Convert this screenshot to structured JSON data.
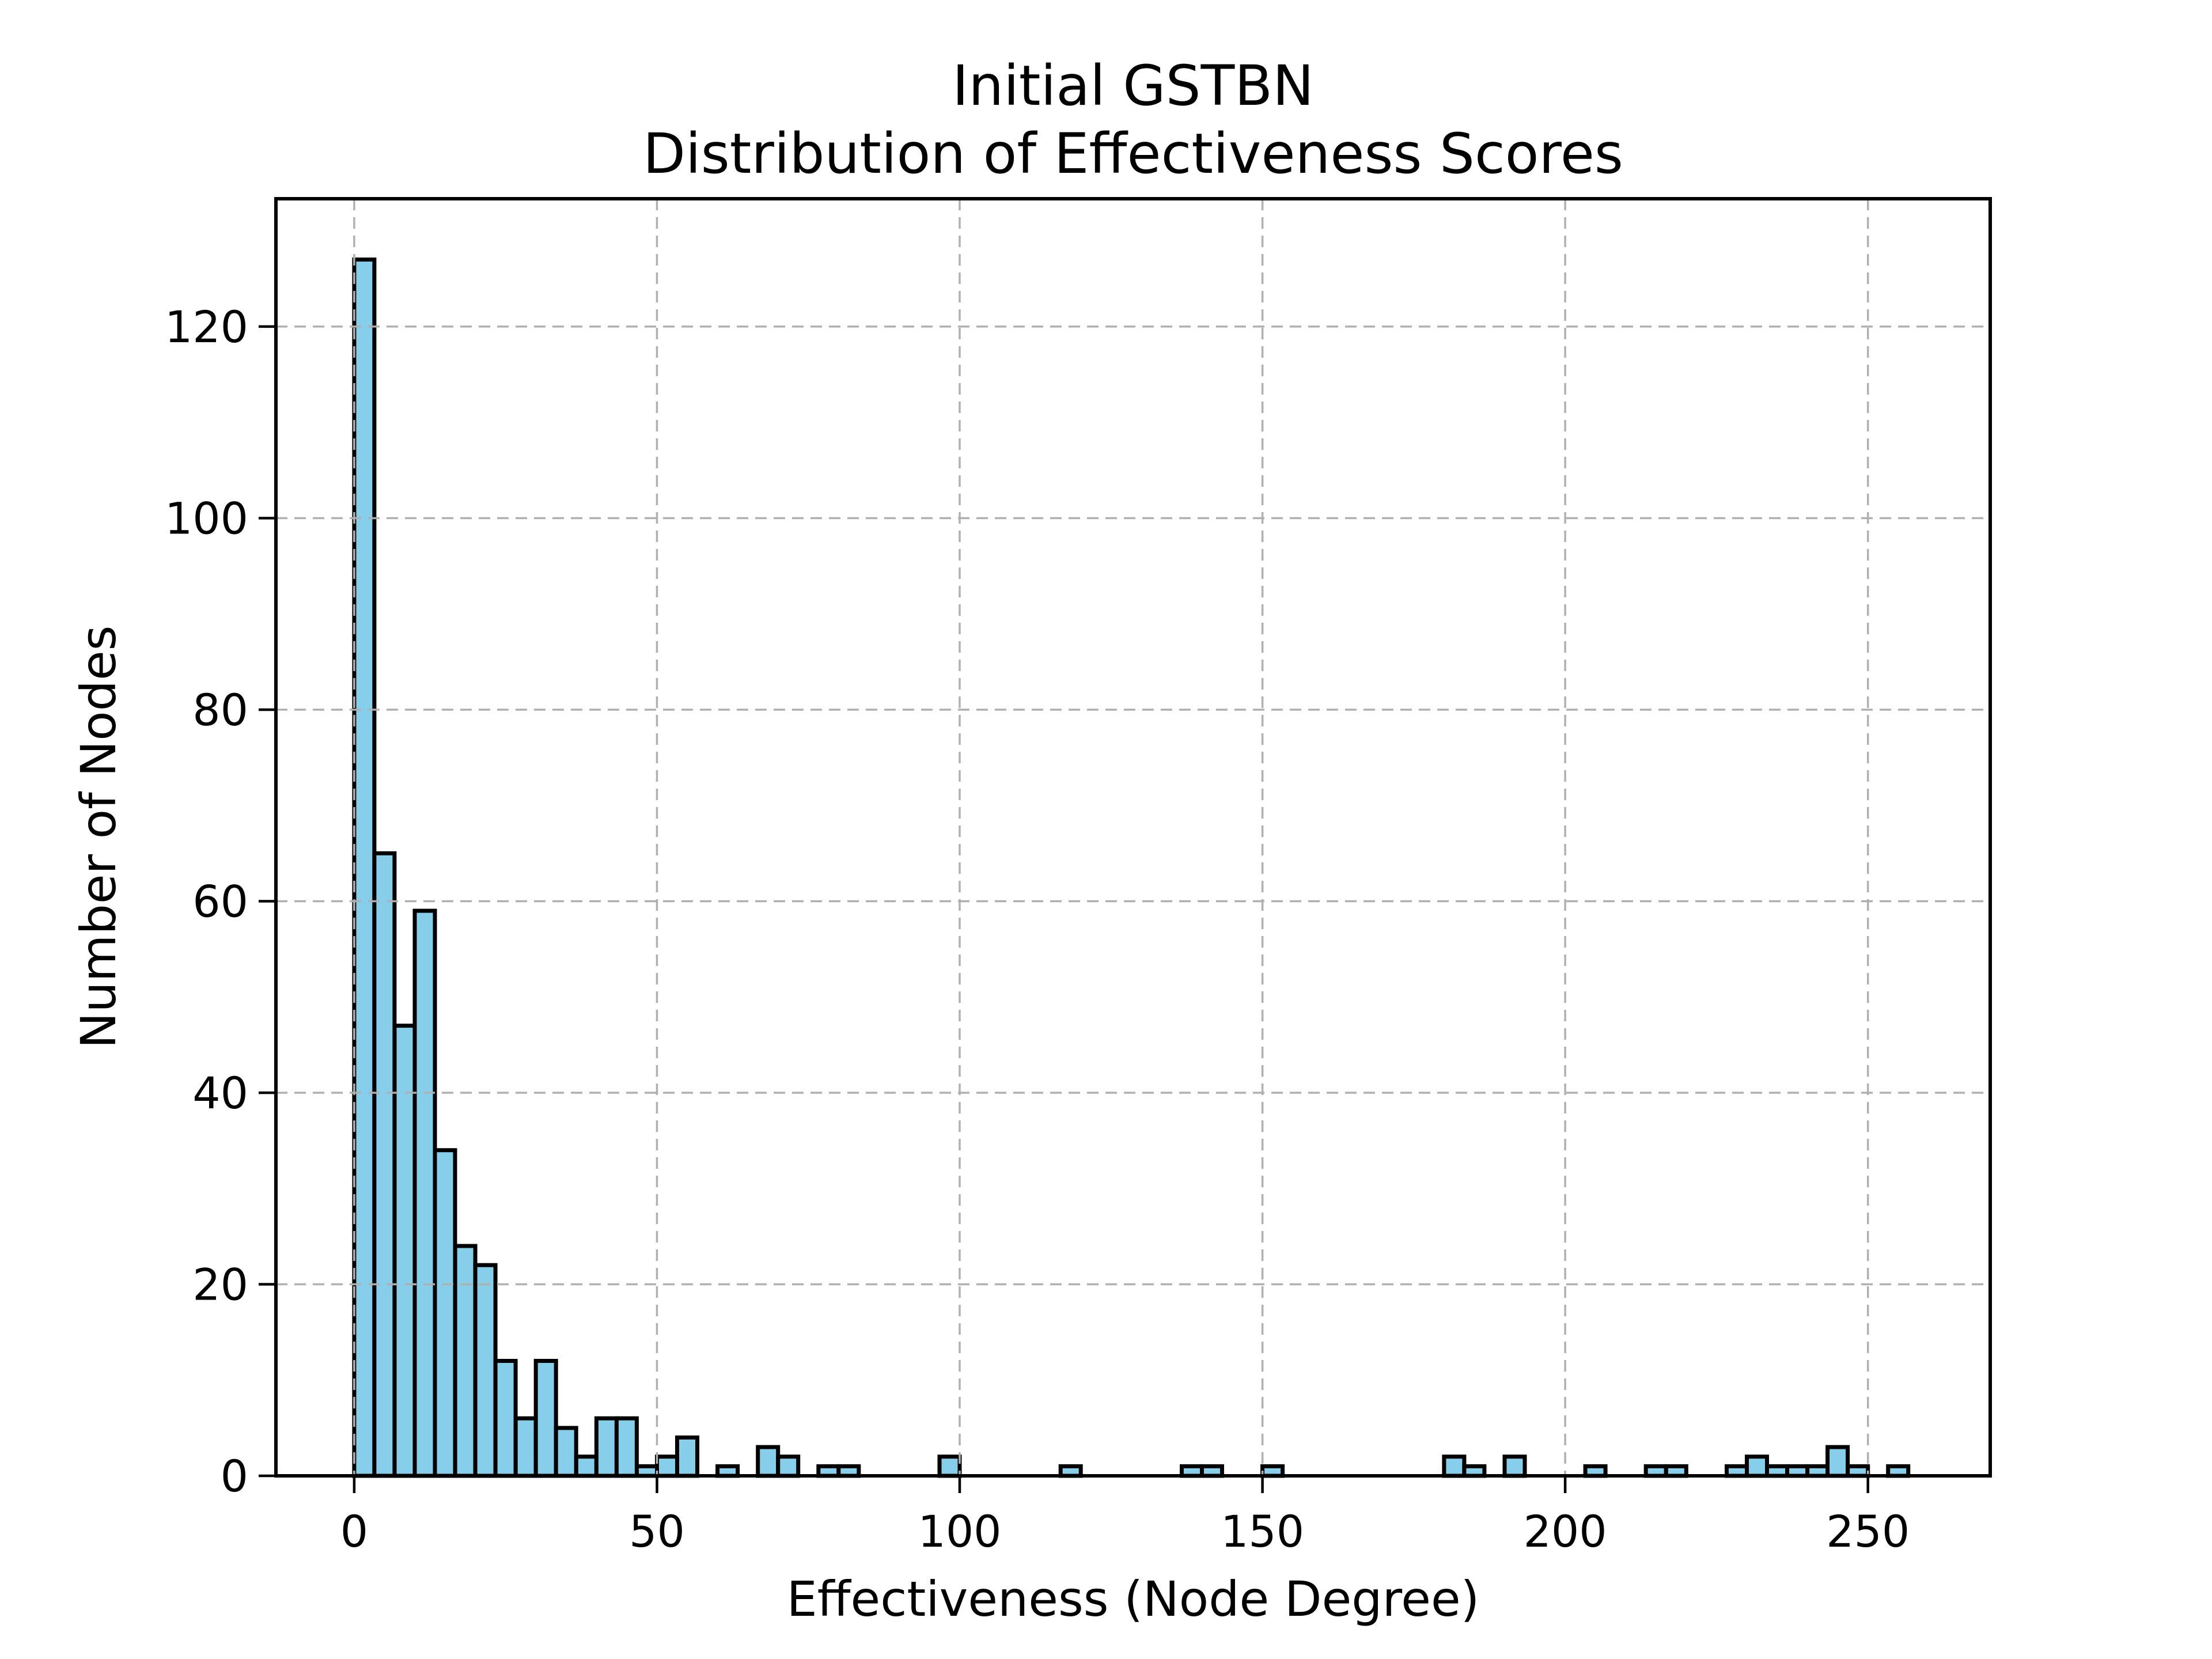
{
  "chart_data": {
    "type": "bar",
    "subtype": "histogram",
    "title_lines": [
      "Initial GSTBN",
      "Distribution of Effectiveness Scores"
    ],
    "xlabel": "Effectiveness (Node Degree)",
    "ylabel": "Number of Nodes",
    "bin_width": 3.3333,
    "bins": [
      [
        0,
        127
      ],
      [
        3.33,
        65
      ],
      [
        6.67,
        47
      ],
      [
        10,
        59
      ],
      [
        13.33,
        34
      ],
      [
        16.67,
        24
      ],
      [
        20,
        22
      ],
      [
        23.33,
        12
      ],
      [
        26.67,
        6
      ],
      [
        30,
        12
      ],
      [
        33.33,
        5
      ],
      [
        36.67,
        2
      ],
      [
        40,
        6
      ],
      [
        43.33,
        6
      ],
      [
        46.67,
        1
      ],
      [
        50,
        2
      ],
      [
        53.33,
        4
      ],
      [
        60,
        1
      ],
      [
        66.67,
        3
      ],
      [
        70,
        2
      ],
      [
        76.67,
        1
      ],
      [
        80,
        1
      ],
      [
        96.67,
        2
      ],
      [
        116.67,
        1
      ],
      [
        136.67,
        1
      ],
      [
        140,
        1
      ],
      [
        150,
        1
      ],
      [
        180,
        2
      ],
      [
        183.33,
        1
      ],
      [
        190,
        2
      ],
      [
        203.33,
        1
      ],
      [
        213.33,
        1
      ],
      [
        216.67,
        1
      ],
      [
        226.67,
        1
      ],
      [
        230,
        2
      ],
      [
        233.33,
        1
      ],
      [
        236.67,
        1
      ],
      [
        240,
        1
      ],
      [
        243.33,
        3
      ],
      [
        246.67,
        1
      ],
      [
        253.33,
        1
      ]
    ],
    "x_ticks": [
      0,
      50,
      100,
      150,
      200,
      250
    ],
    "y_ticks": [
      0,
      20,
      40,
      60,
      80,
      100,
      120
    ],
    "xlim": [
      -12.93,
      270.2
    ],
    "ylim": [
      0,
      133.35
    ],
    "grid": true,
    "grid_style": "dashed",
    "legend": null,
    "colors": {
      "bar_fill": "#87CEEB",
      "bar_edge": "#000000",
      "grid": "#b0b0b0",
      "axes": "#000000",
      "text": "#000000",
      "background": "#ffffff"
    }
  }
}
